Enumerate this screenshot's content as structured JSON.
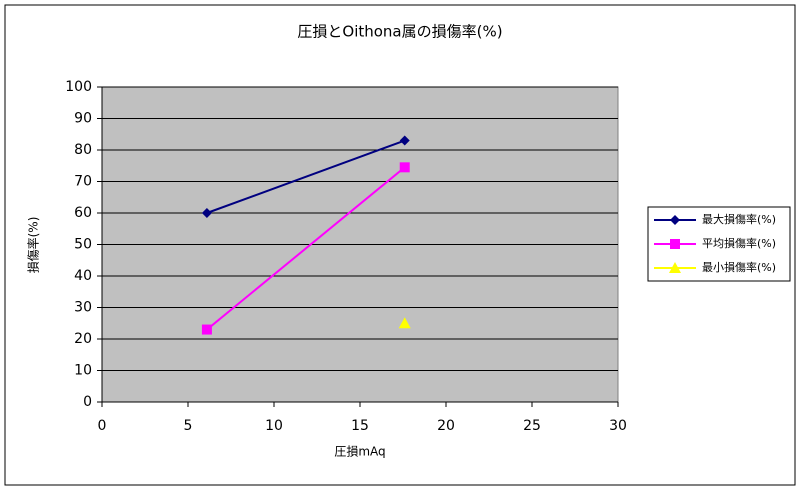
{
  "chart_data": {
    "type": "scatter-line",
    "title": "圧損とOithona属の損傷率(%)",
    "x_label": "圧損mAq",
    "y_label": "損傷率(%)",
    "x": [
      6.1,
      17.6
    ],
    "series": [
      {
        "name": "最大損傷率(%)",
        "color": "#000080",
        "marker": "diamond",
        "values": [
          60,
          83
        ]
      },
      {
        "name": "平均損傷率(%)",
        "color": "#ff00ff",
        "marker": "square",
        "values": [
          23,
          74.5
        ]
      },
      {
        "name": "最小損傷率(%)",
        "color": "#ffff00",
        "marker": "triangle",
        "values": [
          null,
          25
        ]
      }
    ],
    "xlim": [
      0,
      30
    ],
    "xticks": [
      0,
      5,
      10,
      15,
      20,
      25,
      30
    ],
    "ylim": [
      0,
      100
    ],
    "yticks": [
      0,
      10,
      20,
      30,
      40,
      50,
      60,
      70,
      80,
      90,
      100
    ],
    "grid": true,
    "legend": "right"
  }
}
